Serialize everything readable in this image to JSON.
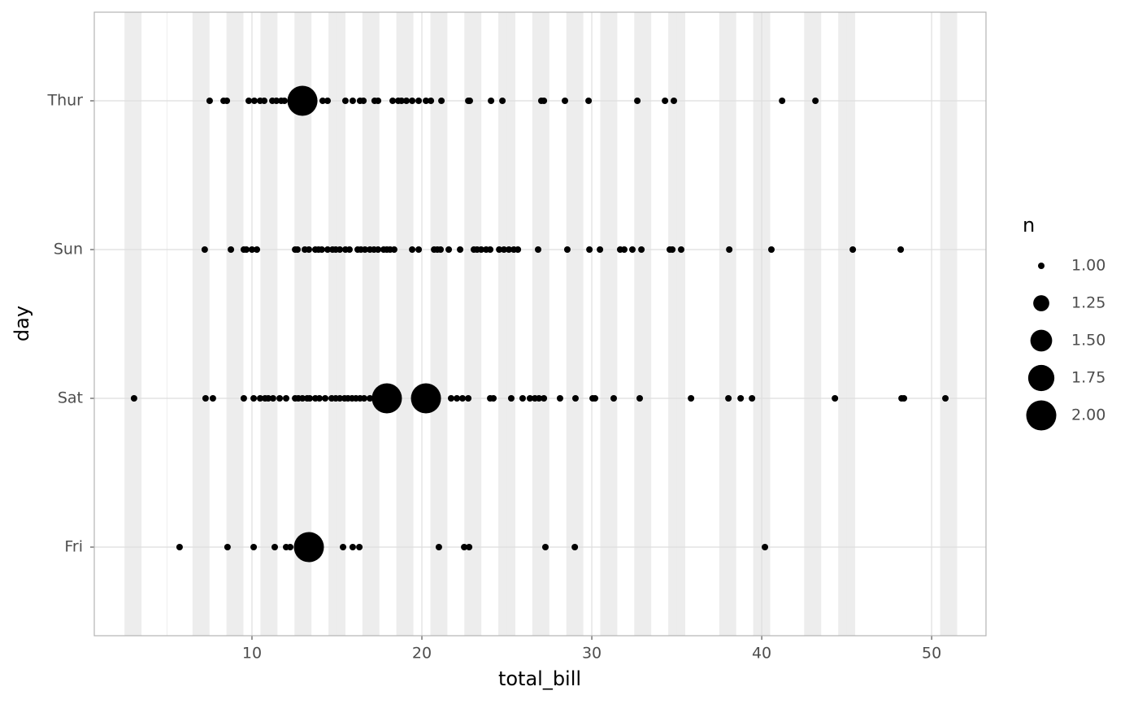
{
  "chart_data": {
    "type": "scatter",
    "x_label": "total_bill",
    "y_label": "day",
    "categories": [
      "Fri",
      "Sat",
      "Sun",
      "Thur"
    ],
    "xlim": [
      0.72,
      53.2
    ],
    "xticks": [
      10,
      20,
      30,
      40,
      50
    ],
    "x_minor_ticks": [
      5,
      15,
      25,
      35,
      45
    ],
    "grid": true,
    "stripes": [
      3,
      7,
      9,
      11,
      13,
      15,
      17,
      19,
      21,
      23,
      25,
      27,
      29,
      31,
      33,
      35,
      38,
      40,
      43,
      45,
      51
    ],
    "color": "#000000",
    "size_legend": {
      "title": "n",
      "ticks": [
        {
          "value": 1,
          "label": "1.00"
        },
        {
          "value": 1.25,
          "label": "1.25"
        },
        {
          "value": 1.5,
          "label": "1.50"
        },
        {
          "value": 1.75,
          "label": "1.75"
        },
        {
          "value": 2,
          "label": "2.00"
        }
      ]
    },
    "series": [
      {
        "name": "Fri",
        "x": [
          5.74,
          8.56,
          10.1,
          11.34,
          12.01,
          12.25,
          13.35,
          15.36,
          15.93,
          16.32,
          21.0,
          22.49,
          22.78,
          27.27,
          29.0,
          40.19
        ],
        "n": [
          1,
          1,
          1,
          1,
          1,
          1,
          2,
          1,
          1,
          1,
          1,
          1,
          1,
          1,
          1,
          1
        ]
      },
      {
        "name": "Sat",
        "x": [
          3.06,
          7.27,
          7.7,
          9.52,
          10.1,
          10.48,
          10.77,
          10.96,
          11.24,
          11.63,
          12.01,
          12.54,
          12.73,
          12.97,
          13.25,
          13.4,
          13.73,
          13.97,
          14.31,
          14.69,
          14.93,
          15.17,
          15.45,
          15.65,
          15.89,
          16.12,
          16.36,
          16.6,
          16.94,
          17.94,
          18.61,
          20.24,
          21.72,
          22.06,
          22.39,
          22.73,
          24.02,
          24.21,
          25.26,
          25.93,
          26.36,
          26.65,
          26.89,
          27.18,
          28.13,
          29.04,
          30.05,
          30.19,
          31.29,
          32.82,
          35.84,
          38.04,
          38.76,
          39.43,
          44.31,
          48.23,
          48.37,
          50.81
        ],
        "n": [
          1,
          1,
          1,
          1,
          1,
          1,
          1,
          1,
          1,
          1,
          1,
          1,
          1,
          1,
          1,
          1,
          1,
          1,
          1,
          1,
          1,
          1,
          1,
          1,
          1,
          1,
          1,
          1,
          1,
          2,
          1,
          2,
          1,
          1,
          1,
          1,
          1,
          1,
          1,
          1,
          1,
          1,
          1,
          1,
          1,
          1,
          1,
          1,
          1,
          1,
          1,
          1,
          1,
          1,
          1,
          1,
          1,
          1
        ]
      },
      {
        "name": "Sun",
        "x": [
          7.22,
          8.76,
          9.52,
          9.67,
          10.0,
          10.29,
          12.54,
          12.68,
          13.11,
          13.35,
          13.73,
          13.92,
          14.11,
          14.45,
          14.74,
          14.93,
          15.17,
          15.5,
          15.74,
          16.22,
          16.41,
          16.65,
          16.94,
          17.18,
          17.42,
          17.75,
          17.94,
          18.13,
          18.37,
          19.43,
          19.81,
          20.72,
          20.91,
          21.1,
          21.58,
          22.25,
          23.06,
          23.25,
          23.49,
          23.78,
          24.02,
          24.55,
          24.83,
          25.12,
          25.41,
          25.65,
          26.84,
          28.56,
          29.86,
          30.48,
          31.67,
          31.91,
          32.39,
          32.92,
          34.59,
          34.74,
          35.26,
          38.09,
          40.57,
          45.36,
          48.18
        ],
        "n": [
          1,
          1,
          1,
          1,
          1,
          1,
          1,
          1,
          1,
          1,
          1,
          1,
          1,
          1,
          1,
          1,
          1,
          1,
          1,
          1,
          1,
          1,
          1,
          1,
          1,
          1,
          1,
          1,
          1,
          1,
          1,
          1,
          1,
          1,
          1,
          1,
          1,
          1,
          1,
          1,
          1,
          1,
          1,
          1,
          1,
          1,
          1,
          1,
          1,
          1,
          1,
          1,
          1,
          1,
          1,
          1,
          1,
          1,
          1,
          1,
          1
        ]
      },
      {
        "name": "Thur",
        "x": [
          7.51,
          8.33,
          8.52,
          9.81,
          10.14,
          10.48,
          10.72,
          11.2,
          11.44,
          11.72,
          11.91,
          12.97,
          14.16,
          14.45,
          15.5,
          15.93,
          16.36,
          16.56,
          17.22,
          17.42,
          18.28,
          18.61,
          18.8,
          19.09,
          19.43,
          19.81,
          20.24,
          20.53,
          21.15,
          22.73,
          22.82,
          24.07,
          24.74,
          27.03,
          27.18,
          28.42,
          29.81,
          32.68,
          34.31,
          34.83,
          41.2,
          43.16
        ],
        "n": [
          1,
          1,
          1,
          1,
          1,
          1,
          1,
          1,
          1,
          1,
          1,
          2,
          1,
          1,
          1,
          1,
          1,
          1,
          1,
          1,
          1,
          1,
          1,
          1,
          1,
          1,
          1,
          1,
          1,
          1,
          1,
          1,
          1,
          1,
          1,
          1,
          1,
          1,
          1,
          1,
          1,
          1
        ]
      }
    ]
  }
}
